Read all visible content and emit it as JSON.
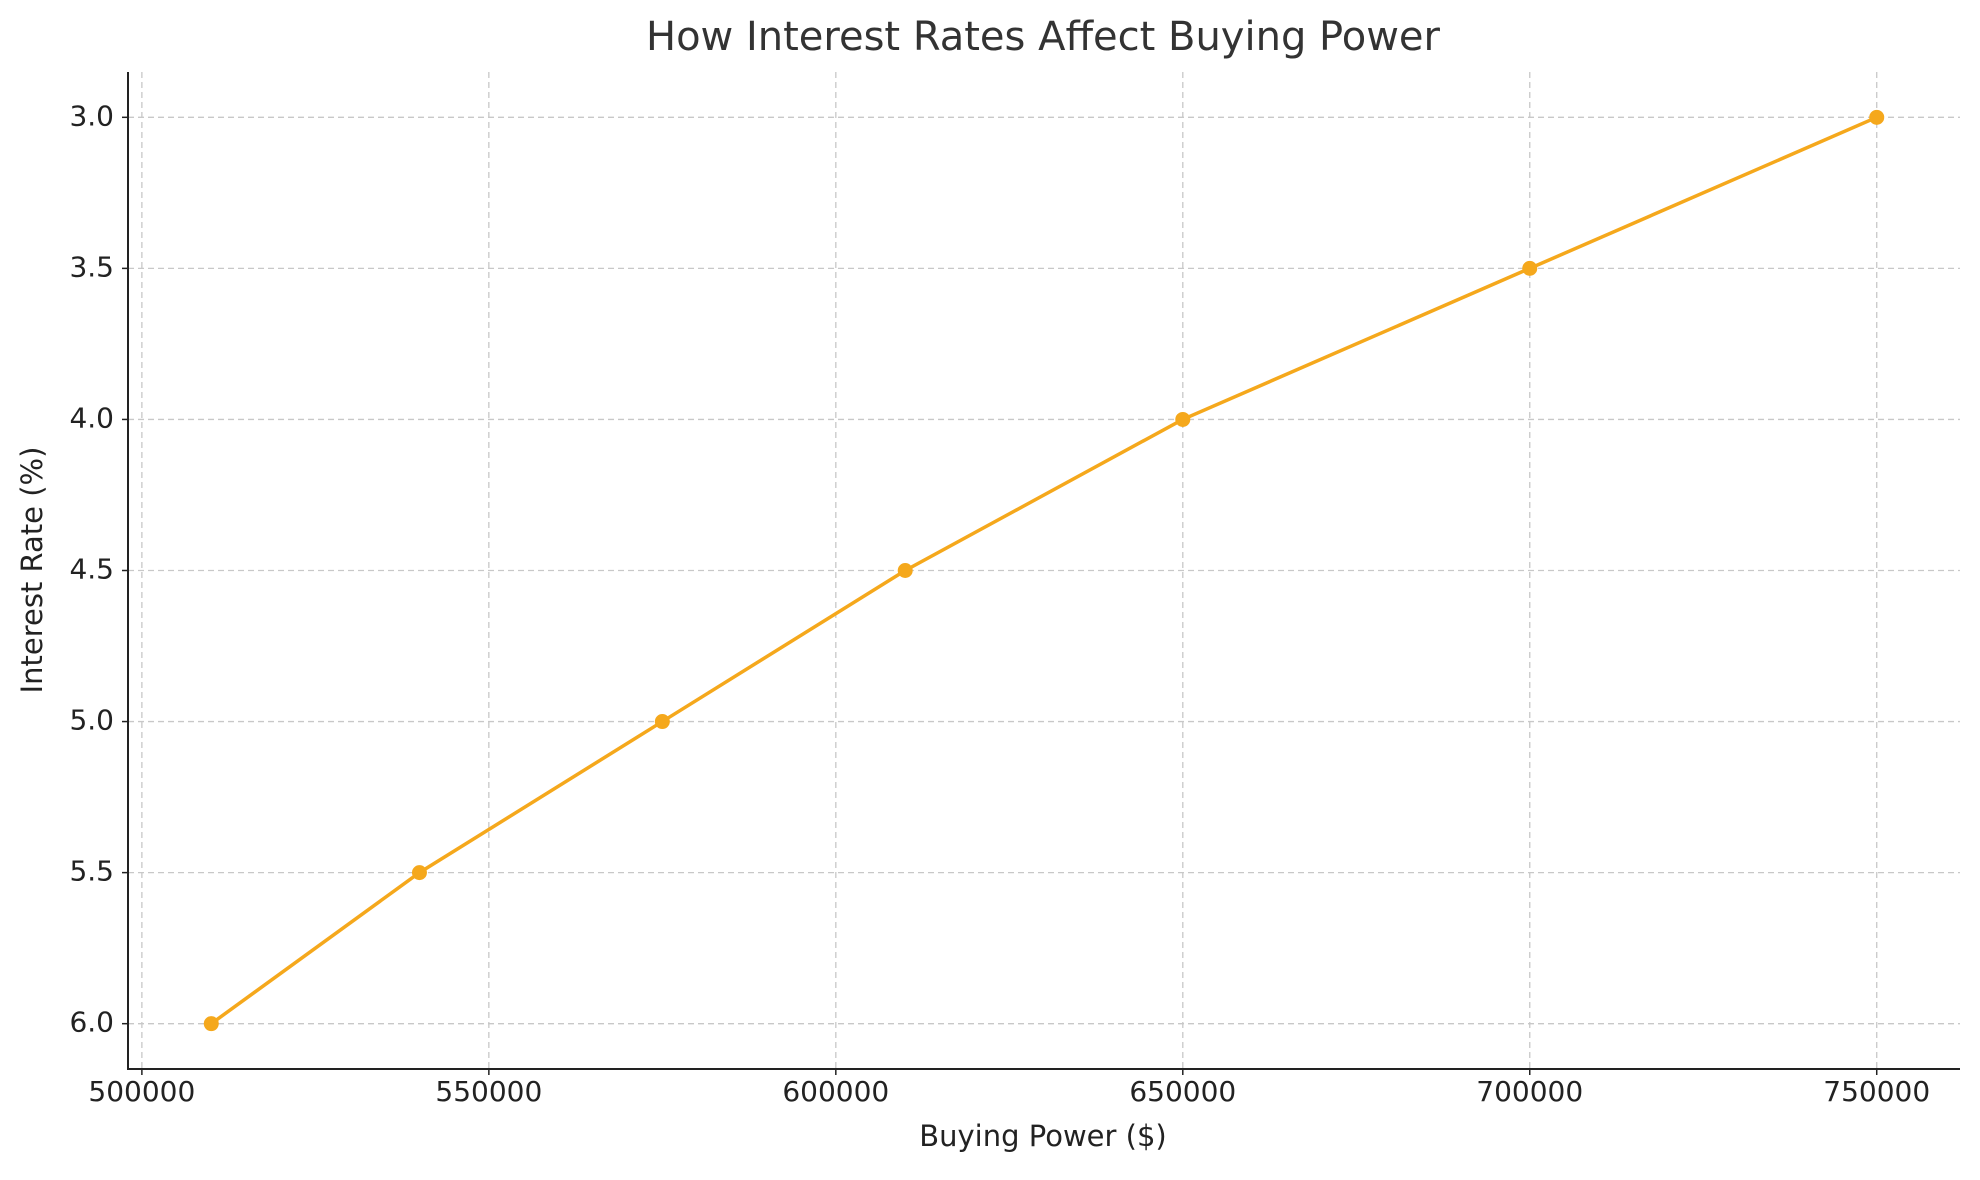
{
  "chart_data": {
    "type": "line",
    "title": "How Interest Rates Affect Buying Power",
    "x_label": "Buying Power ($)",
    "y_label": "Interest Rate (%)",
    "x": [
      510000,
      540000,
      575000,
      610000,
      650000,
      700000,
      750000
    ],
    "series": [
      {
        "name": "Interest Rate",
        "color": "#f5a81c",
        "values": [
          6.0,
          5.5,
          5.0,
          4.5,
          4.0,
          3.5,
          3.0
        ]
      }
    ],
    "xlim": [
      498000,
      762000
    ],
    "xticks": [
      500000,
      550000,
      600000,
      650000,
      700000,
      750000
    ],
    "ylim": [
      2.85,
      6.15
    ],
    "y_inverted": true,
    "yticks": [
      {
        "value": 3,
        "label": "3.0"
      },
      3.5,
      {
        "value": 4,
        "label": "4.0"
      },
      4.5,
      {
        "value": 5,
        "label": "5.0"
      },
      5.5,
      {
        "value": 6,
        "label": "6.0"
      }
    ],
    "grid": true
  }
}
